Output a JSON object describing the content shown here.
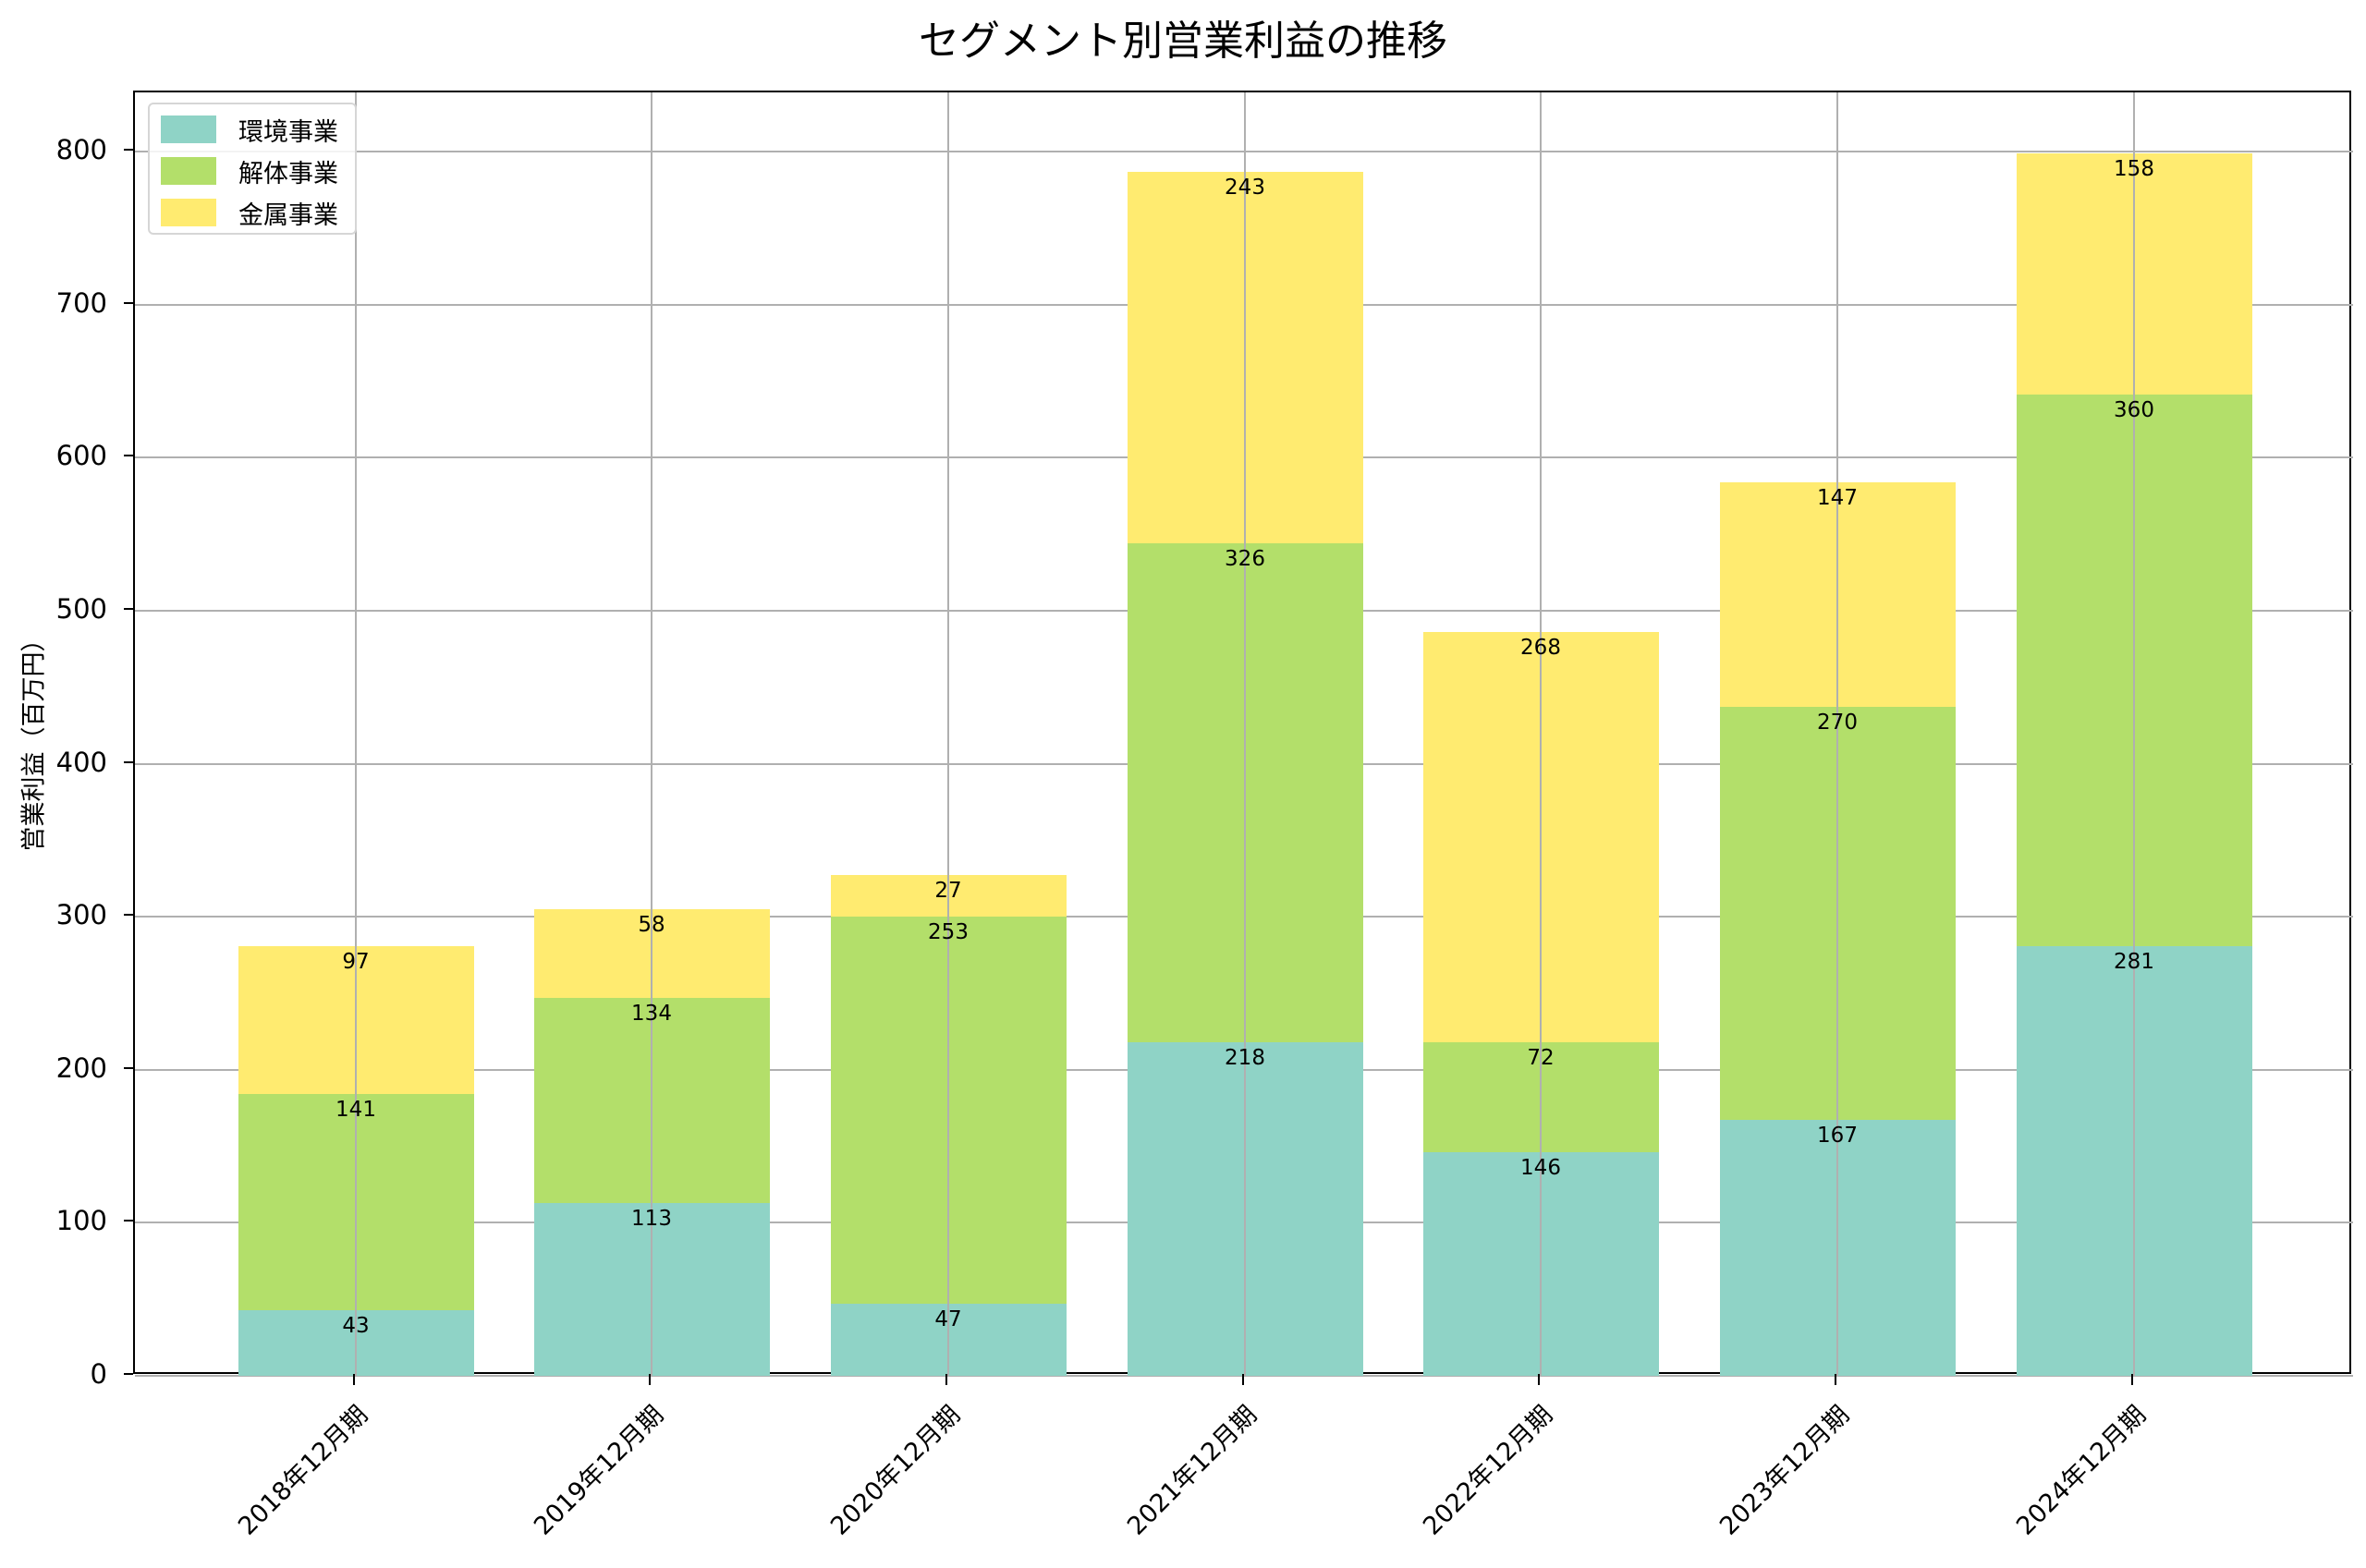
{
  "title": "セグメント別営業利益の推移",
  "ylabel": "営業利益（百万円）",
  "legend": [
    "環境事業",
    "解体事業",
    "金属事業"
  ],
  "colors": {
    "環境事業": "#8fd3c6",
    "解体事業": "#b3df6a",
    "金属事業": "#ffeb70"
  },
  "chart_data": {
    "type": "bar",
    "stacked": true,
    "title": "セグメント別営業利益の推移",
    "xlabel": "",
    "ylabel": "営業利益（百万円）",
    "ylim": [
      0,
      840
    ],
    "yticks": [
      0,
      100,
      200,
      300,
      400,
      500,
      600,
      700,
      800
    ],
    "grid": true,
    "legend_position": "upper left",
    "categories": [
      "2018年12月期",
      "2019年12月期",
      "2020年12月期",
      "2021年12月期",
      "2022年12月期",
      "2023年12月期",
      "2024年12月期"
    ],
    "series": [
      {
        "name": "環境事業",
        "values": [
          43,
          113,
          47,
          218,
          146,
          167,
          281
        ]
      },
      {
        "name": "解体事業",
        "values": [
          141,
          134,
          253,
          326,
          72,
          270,
          360
        ]
      },
      {
        "name": "金属事業",
        "values": [
          97,
          58,
          27,
          243,
          268,
          147,
          158
        ]
      }
    ]
  }
}
